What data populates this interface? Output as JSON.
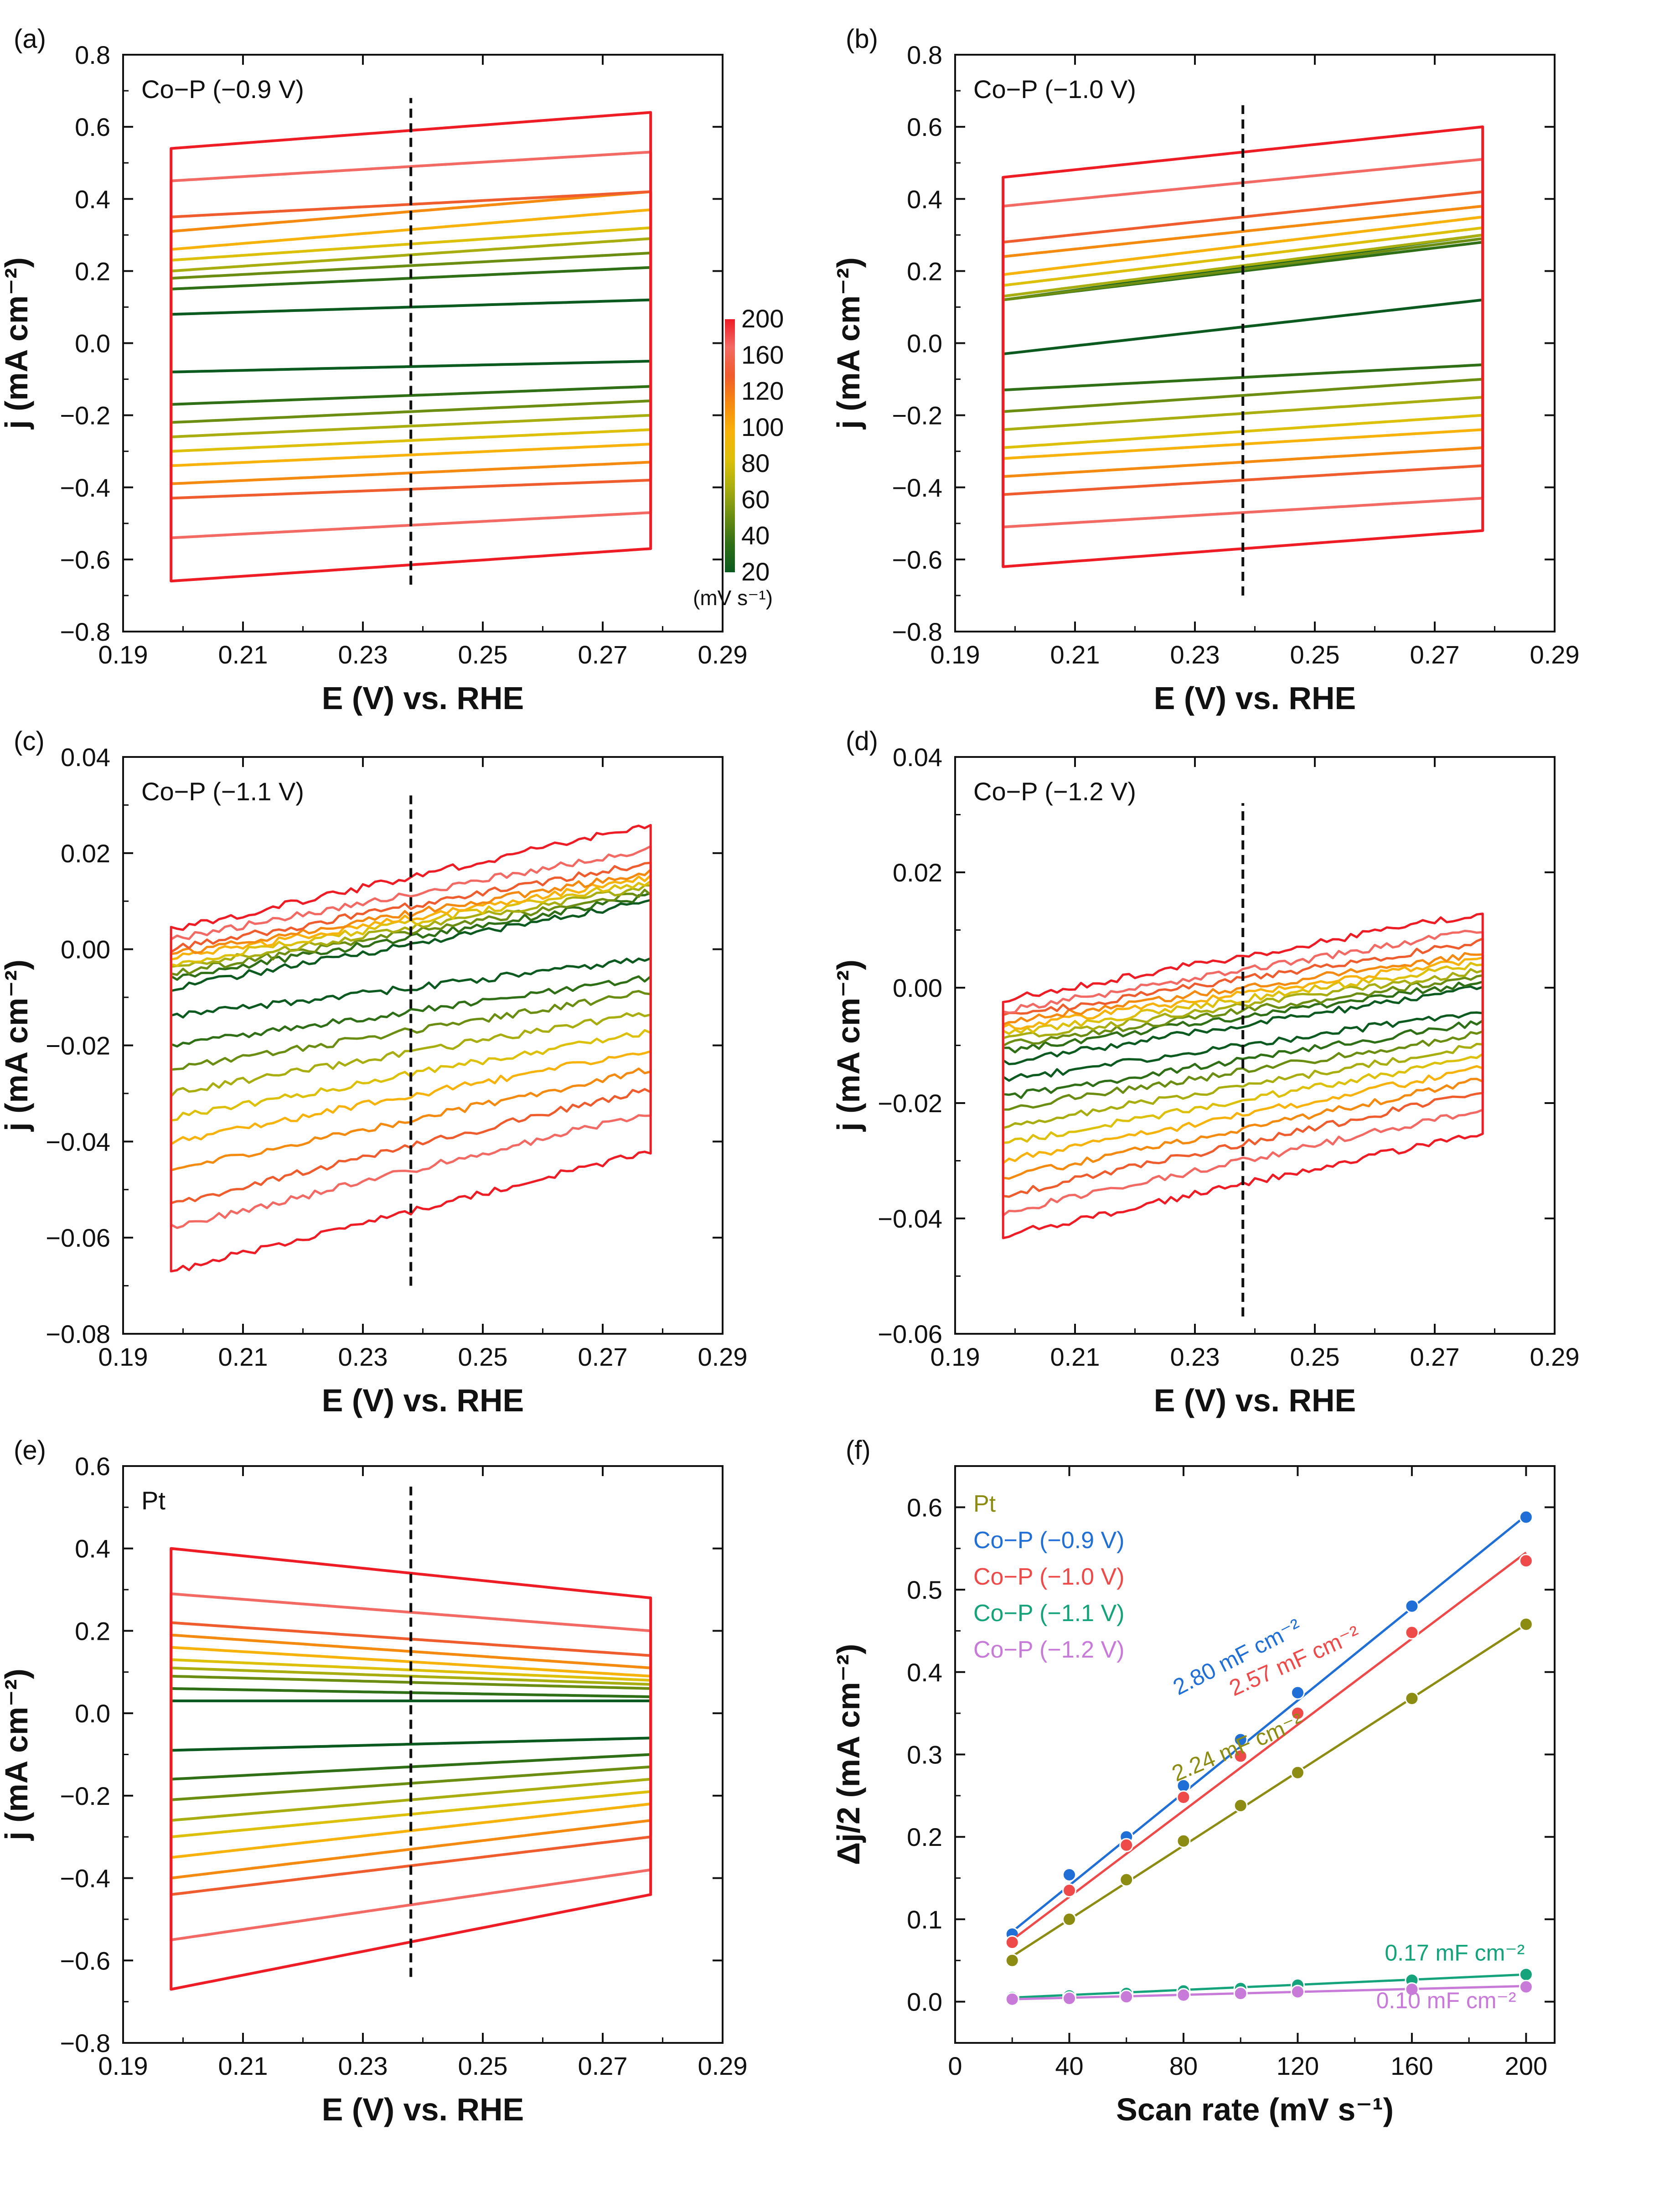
{
  "figure": {
    "colorbar": {
      "values": [
        "200",
        "160",
        "120",
        "100",
        "80",
        "60",
        "40",
        "20"
      ],
      "unit": "(mV s⁻¹)"
    },
    "scan_rate_colors": [
      "#0b5a1f",
      "#2f6f16",
      "#6b8e12",
      "#a8ad10",
      "#dcc00a",
      "#f7b20b",
      "#f58a10",
      "#ef5c2d",
      "#f26a63",
      "#ee1c25"
    ]
  },
  "chart_data": [
    {
      "panel_label": "(a)",
      "type": "line",
      "title": "Co−P (−0.9 V)",
      "xlabel": "E (V) vs. RHE",
      "ylabel": "j (mA cm⁻²)",
      "xlim": [
        0.19,
        0.29
      ],
      "ylim": [
        -0.8,
        0.8
      ],
      "xticks": [
        "0.19",
        "0.21",
        "0.23",
        "0.25",
        "0.27",
        "0.29"
      ],
      "yticks": [
        "−0.8",
        "−0.6",
        "−0.4",
        "−0.2",
        "0.0",
        "0.2",
        "0.4",
        "0.6",
        "0.8"
      ],
      "x_range": [
        0.198,
        0.278
      ],
      "marker_x": 0.238,
      "marker_y": [
        -0.67,
        0.68
      ],
      "series": [
        {
          "scan_rate": 20,
          "anodic": [
            0.08,
            0.12
          ],
          "cathodic": [
            -0.08,
            -0.05
          ]
        },
        {
          "scan_rate": 40,
          "anodic": [
            0.15,
            0.21
          ],
          "cathodic": [
            -0.17,
            -0.12
          ]
        },
        {
          "scan_rate": 60,
          "anodic": [
            0.18,
            0.25
          ],
          "cathodic": [
            -0.22,
            -0.16
          ]
        },
        {
          "scan_rate": 80,
          "anodic": [
            0.2,
            0.29
          ],
          "cathodic": [
            -0.26,
            -0.2
          ]
        },
        {
          "scan_rate": 100,
          "anodic": [
            0.23,
            0.32
          ],
          "cathodic": [
            -0.3,
            -0.24
          ]
        },
        {
          "scan_rate": 120,
          "anodic": [
            0.26,
            0.37
          ],
          "cathodic": [
            -0.34,
            -0.28
          ]
        },
        {
          "scan_rate": 140,
          "anodic": [
            0.31,
            0.42
          ],
          "cathodic": [
            -0.39,
            -0.33
          ]
        },
        {
          "scan_rate": 160,
          "anodic": [
            0.35,
            0.42
          ],
          "cathodic": [
            -0.43,
            -0.38
          ]
        },
        {
          "scan_rate": 180,
          "anodic": [
            0.45,
            0.53
          ],
          "cathodic": [
            -0.54,
            -0.47
          ]
        },
        {
          "scan_rate": 200,
          "anodic": [
            0.54,
            0.64
          ],
          "cathodic": [
            -0.66,
            -0.57
          ]
        }
      ]
    },
    {
      "panel_label": "(b)",
      "type": "line",
      "title": "Co−P (−1.0 V)",
      "xlabel": "E (V) vs. RHE",
      "ylabel": "j (mA cm⁻²)",
      "xlim": [
        0.19,
        0.29
      ],
      "ylim": [
        -0.8,
        0.8
      ],
      "xticks": [
        "0.19",
        "0.21",
        "0.23",
        "0.25",
        "0.27",
        "0.29"
      ],
      "yticks": [
        "−0.8",
        "−0.6",
        "−0.4",
        "−0.2",
        "0.0",
        "0.2",
        "0.4",
        "0.6",
        "0.8"
      ],
      "x_range": [
        0.198,
        0.278
      ],
      "marker_x": 0.238,
      "marker_y": [
        -0.7,
        0.66
      ],
      "series": [
        {
          "scan_rate": 20,
          "anodic": [
            0.12,
            0.3
          ],
          "cathodic": [
            -0.03,
            0.12
          ]
        },
        {
          "scan_rate": 40,
          "anodic": [
            0.12,
            0.28
          ],
          "cathodic": [
            -0.13,
            -0.06
          ]
        },
        {
          "scan_rate": 60,
          "anodic": [
            0.12,
            0.29
          ],
          "cathodic": [
            -0.19,
            -0.1
          ]
        },
        {
          "scan_rate": 80,
          "anodic": [
            0.13,
            0.3
          ],
          "cathodic": [
            -0.24,
            -0.15
          ]
        },
        {
          "scan_rate": 100,
          "anodic": [
            0.16,
            0.32
          ],
          "cathodic": [
            -0.29,
            -0.2
          ]
        },
        {
          "scan_rate": 120,
          "anodic": [
            0.19,
            0.35
          ],
          "cathodic": [
            -0.32,
            -0.24
          ]
        },
        {
          "scan_rate": 140,
          "anodic": [
            0.24,
            0.38
          ],
          "cathodic": [
            -0.37,
            -0.29
          ]
        },
        {
          "scan_rate": 160,
          "anodic": [
            0.28,
            0.42
          ],
          "cathodic": [
            -0.42,
            -0.34
          ]
        },
        {
          "scan_rate": 180,
          "anodic": [
            0.38,
            0.51
          ],
          "cathodic": [
            -0.51,
            -0.43
          ]
        },
        {
          "scan_rate": 200,
          "anodic": [
            0.46,
            0.6
          ],
          "cathodic": [
            -0.62,
            -0.52
          ]
        }
      ]
    },
    {
      "panel_label": "(c)",
      "type": "line",
      "title": "Co−P (−1.1 V)",
      "xlabel": "E (V) vs. RHE",
      "ylabel": "j (mA cm⁻²)",
      "xlim": [
        0.19,
        0.29
      ],
      "ylim": [
        -0.08,
        0.04
      ],
      "xticks": [
        "0.19",
        "0.21",
        "0.23",
        "0.25",
        "0.27",
        "0.29"
      ],
      "yticks": [
        "−0.08",
        "−0.06",
        "−0.04",
        "−0.02",
        "0.00",
        "0.02",
        "0.04"
      ],
      "x_range": [
        0.198,
        0.278
      ],
      "marker_x": 0.238,
      "marker_y": [
        -0.07,
        0.032
      ],
      "series": [
        {
          "scan_rate": 20,
          "anodic": [
            -0.008,
            0.01
          ],
          "cathodic": [
            -0.014,
            -0.002
          ]
        },
        {
          "scan_rate": 40,
          "anodic": [
            -0.006,
            0.011
          ],
          "cathodic": [
            -0.02,
            -0.006
          ]
        },
        {
          "scan_rate": 60,
          "anodic": [
            -0.005,
            0.012
          ],
          "cathodic": [
            -0.025,
            -0.009
          ]
        },
        {
          "scan_rate": 80,
          "anodic": [
            -0.004,
            0.013
          ],
          "cathodic": [
            -0.03,
            -0.013
          ]
        },
        {
          "scan_rate": 100,
          "anodic": [
            -0.003,
            0.014
          ],
          "cathodic": [
            -0.035,
            -0.017
          ]
        },
        {
          "scan_rate": 120,
          "anodic": [
            -0.002,
            0.015
          ],
          "cathodic": [
            -0.04,
            -0.021
          ]
        },
        {
          "scan_rate": 140,
          "anodic": [
            -0.001,
            0.016
          ],
          "cathodic": [
            -0.046,
            -0.025
          ]
        },
        {
          "scan_rate": 160,
          "anodic": [
            0.0,
            0.018
          ],
          "cathodic": [
            -0.053,
            -0.029
          ]
        },
        {
          "scan_rate": 180,
          "anodic": [
            0.002,
            0.021
          ],
          "cathodic": [
            -0.058,
            -0.034
          ]
        },
        {
          "scan_rate": 200,
          "anodic": [
            0.004,
            0.026
          ],
          "cathodic": [
            -0.067,
            -0.042
          ]
        }
      ]
    },
    {
      "panel_label": "(d)",
      "type": "line",
      "title": "Co−P (−1.2 V)",
      "xlabel": "E (V) vs. RHE",
      "ylabel": "j (mA cm⁻²)",
      "xlim": [
        0.19,
        0.29
      ],
      "ylim": [
        -0.06,
        0.04
      ],
      "xticks": [
        "0.19",
        "0.21",
        "0.23",
        "0.25",
        "0.27",
        "0.29"
      ],
      "yticks": [
        "−0.06",
        "−0.04",
        "−0.02",
        "0.00",
        "0.02",
        "0.04"
      ],
      "x_range": [
        0.198,
        0.278
      ],
      "marker_x": 0.238,
      "marker_y": [
        -0.057,
        0.032
      ],
      "series": [
        {
          "scan_rate": 20,
          "anodic": [
            -0.013,
            0.0
          ],
          "cathodic": [
            -0.016,
            -0.004
          ]
        },
        {
          "scan_rate": 40,
          "anodic": [
            -0.011,
            0.001
          ],
          "cathodic": [
            -0.019,
            -0.006
          ]
        },
        {
          "scan_rate": 60,
          "anodic": [
            -0.01,
            0.002
          ],
          "cathodic": [
            -0.021,
            -0.008
          ]
        },
        {
          "scan_rate": 80,
          "anodic": [
            -0.009,
            0.003
          ],
          "cathodic": [
            -0.024,
            -0.01
          ]
        },
        {
          "scan_rate": 100,
          "anodic": [
            -0.008,
            0.004
          ],
          "cathodic": [
            -0.027,
            -0.012
          ]
        },
        {
          "scan_rate": 120,
          "anodic": [
            -0.007,
            0.005
          ],
          "cathodic": [
            -0.03,
            -0.014
          ]
        },
        {
          "scan_rate": 140,
          "anodic": [
            -0.006,
            0.006
          ],
          "cathodic": [
            -0.033,
            -0.016
          ]
        },
        {
          "scan_rate": 160,
          "anodic": [
            -0.005,
            0.008
          ],
          "cathodic": [
            -0.036,
            -0.018
          ]
        },
        {
          "scan_rate": 180,
          "anodic": [
            -0.004,
            0.01
          ],
          "cathodic": [
            -0.039,
            -0.021
          ]
        },
        {
          "scan_rate": 200,
          "anodic": [
            -0.002,
            0.013
          ],
          "cathodic": [
            -0.043,
            -0.025
          ]
        }
      ]
    },
    {
      "panel_label": "(e)",
      "type": "line",
      "title": "Pt",
      "xlabel": "E (V) vs. RHE",
      "ylabel": "j (mA cm⁻²)",
      "xlim": [
        0.19,
        0.29
      ],
      "ylim": [
        -0.8,
        0.6
      ],
      "xticks": [
        "0.19",
        "0.21",
        "0.23",
        "0.25",
        "0.27",
        "0.29"
      ],
      "yticks": [
        "−0.8",
        "−0.6",
        "−0.4",
        "−0.2",
        "0.0",
        "0.2",
        "0.4",
        "0.6"
      ],
      "x_range": [
        0.198,
        0.278
      ],
      "marker_x": 0.238,
      "marker_y": [
        -0.64,
        0.55
      ],
      "series": [
        {
          "scan_rate": 20,
          "anodic": [
            0.03,
            0.03
          ],
          "cathodic": [
            -0.09,
            -0.06
          ]
        },
        {
          "scan_rate": 40,
          "anodic": [
            0.06,
            0.04
          ],
          "cathodic": [
            -0.16,
            -0.1
          ]
        },
        {
          "scan_rate": 60,
          "anodic": [
            0.09,
            0.06
          ],
          "cathodic": [
            -0.21,
            -0.13
          ]
        },
        {
          "scan_rate": 80,
          "anodic": [
            0.11,
            0.07
          ],
          "cathodic": [
            -0.26,
            -0.16
          ]
        },
        {
          "scan_rate": 100,
          "anodic": [
            0.13,
            0.08
          ],
          "cathodic": [
            -0.3,
            -0.19
          ]
        },
        {
          "scan_rate": 120,
          "anodic": [
            0.16,
            0.09
          ],
          "cathodic": [
            -0.35,
            -0.22
          ]
        },
        {
          "scan_rate": 140,
          "anodic": [
            0.19,
            0.11
          ],
          "cathodic": [
            -0.4,
            -0.26
          ]
        },
        {
          "scan_rate": 160,
          "anodic": [
            0.22,
            0.14
          ],
          "cathodic": [
            -0.44,
            -0.3
          ]
        },
        {
          "scan_rate": 180,
          "anodic": [
            0.29,
            0.2
          ],
          "cathodic": [
            -0.55,
            -0.38
          ]
        },
        {
          "scan_rate": 200,
          "anodic": [
            0.4,
            0.28
          ],
          "cathodic": [
            -0.67,
            -0.44
          ]
        }
      ]
    },
    {
      "panel_label": "(f)",
      "type": "scatter",
      "xlabel": "Scan rate (mV s⁻¹)",
      "ylabel": "Δj/2 (mA cm⁻²)",
      "xlim": [
        0,
        210
      ],
      "ylim": [
        -0.05,
        0.65
      ],
      "xticks": [
        "0",
        "40",
        "80",
        "120",
        "160",
        "200"
      ],
      "yticks": [
        "0.0",
        "0.1",
        "0.2",
        "0.3",
        "0.4",
        "0.5",
        "0.6"
      ],
      "x": [
        20,
        40,
        60,
        80,
        100,
        120,
        160,
        200
      ],
      "series": [
        {
          "name": "Pt",
          "color": "#8c8c13",
          "values": [
            0.05,
            0.1,
            0.148,
            0.195,
            0.238,
            0.278,
            0.368,
            0.458
          ],
          "fit": [
            0.055,
            0.458
          ],
          "slope_label": "2.24 mF cm⁻²"
        },
        {
          "name": "Co−P (−0.9 V)",
          "color": "#1f6fd6",
          "values": [
            0.082,
            0.154,
            0.2,
            0.262,
            0.318,
            0.375,
            0.48,
            0.588
          ],
          "fit": [
            0.085,
            0.59
          ],
          "slope_label": "2.80 mF cm⁻²"
        },
        {
          "name": "Co−P (−1.0 V)",
          "color": "#ee4a4a",
          "values": [
            0.072,
            0.135,
            0.19,
            0.248,
            0.298,
            0.35,
            0.448,
            0.535
          ],
          "fit": [
            0.075,
            0.545
          ],
          "slope_label": "2.57 mF cm⁻²"
        },
        {
          "name": "Co−P (−1.1 V)",
          "color": "#14a37a",
          "values": [
            0.005,
            0.007,
            0.01,
            0.013,
            0.016,
            0.02,
            0.026,
            0.033
          ],
          "fit": [
            0.005,
            0.033
          ],
          "slope_label": "0.17 mF cm⁻²"
        },
        {
          "name": "Co−P (−1.2 V)",
          "color": "#c87ad9",
          "values": [
            0.003,
            0.004,
            0.006,
            0.008,
            0.01,
            0.012,
            0.015,
            0.018
          ],
          "fit": [
            0.003,
            0.019
          ],
          "slope_label": "0.10 mF cm⁻²"
        }
      ]
    }
  ]
}
